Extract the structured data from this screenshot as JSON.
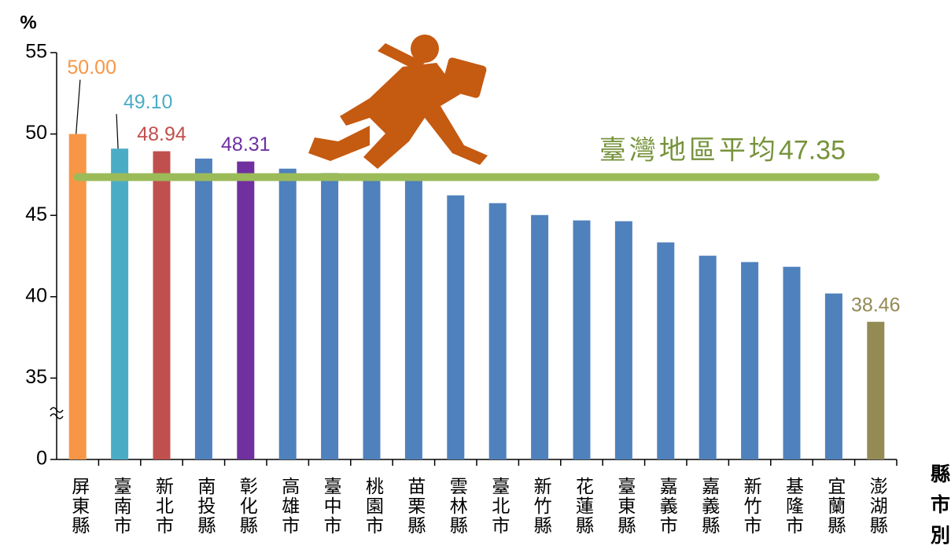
{
  "chart_data": {
    "type": "bar",
    "y_axis_label": "%",
    "x_axis_label": "縣市別",
    "categories": [
      "屏東縣",
      "臺南市",
      "新北市",
      "南投縣",
      "彰化縣",
      "高雄市",
      "臺中市",
      "桃園市",
      "苗栗縣",
      "雲林縣",
      "臺北市",
      "新竹縣",
      "花蓮縣",
      "臺東縣",
      "嘉義市",
      "嘉義縣",
      "新竹市",
      "基隆市",
      "宜蘭縣",
      "澎湖縣"
    ],
    "values": [
      50.0,
      49.1,
      48.94,
      48.49,
      48.31,
      47.87,
      47.6,
      47.5,
      47.4,
      46.23,
      45.75,
      45.02,
      44.69,
      44.64,
      43.34,
      42.52,
      42.13,
      41.84,
      40.2,
      38.46
    ],
    "value_labels": [
      "50.00",
      "49.10",
      "48.94",
      null,
      "48.31",
      null,
      null,
      null,
      null,
      null,
      null,
      null,
      null,
      null,
      null,
      null,
      null,
      null,
      null,
      "38.46"
    ],
    "colors": [
      "#f79646",
      "#4bacc6",
      "#c0504d",
      "#4f81bd",
      "#7030a0",
      "#4f81bd",
      "#4f81bd",
      "#4f81bd",
      "#4f81bd",
      "#4f81bd",
      "#4f81bd",
      "#4f81bd",
      "#4f81bd",
      "#4f81bd",
      "#4f81bd",
      "#4f81bd",
      "#4f81bd",
      "#4f81bd",
      "#4f81bd",
      "#948a54"
    ],
    "ylim": [
      0,
      55
    ],
    "yticks": [
      0,
      35,
      40,
      45,
      50,
      55
    ],
    "axis_break": [
      0,
      35
    ],
    "average": {
      "label": "臺灣地區平均",
      "value": 47.35,
      "color": "#9bbb59",
      "text_color": "#77933c"
    }
  }
}
